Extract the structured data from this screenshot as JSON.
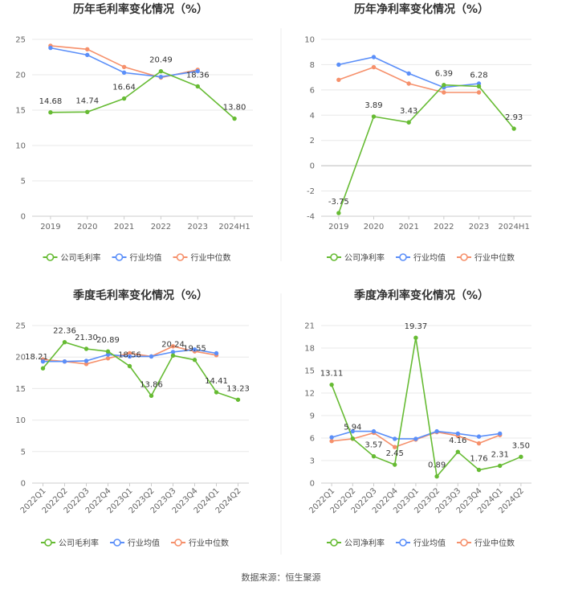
{
  "source": "数据来源：恒生聚源",
  "colors": {
    "company": "#66bb33",
    "industry_avg": "#5b8ff9",
    "industry_median": "#f6906b",
    "grid": "#e8e8e8",
    "axis": "#999999"
  },
  "chart_data": [
    {
      "type": "line",
      "title": "历年毛利率变化情况（%）",
      "categories": [
        "2019",
        "2020",
        "2021",
        "2022",
        "2023",
        "2024H1"
      ],
      "ylim": [
        0,
        25
      ],
      "yticks": [
        0,
        5,
        10,
        15,
        20,
        25
      ],
      "series": [
        {
          "name": "公司毛利率",
          "key": "company",
          "values": [
            14.68,
            14.74,
            16.64,
            20.49,
            18.36,
            13.8
          ],
          "labels": [
            "14.68",
            "14.74",
            "16.64",
            "20.49",
            "18.36",
            "13.80"
          ]
        },
        {
          "name": "行业均值",
          "key": "industry_avg",
          "values": [
            23.8,
            22.8,
            20.3,
            19.7,
            20.5,
            null
          ]
        },
        {
          "name": "行业中位数",
          "key": "industry_median",
          "values": [
            24.1,
            23.6,
            21.1,
            19.6,
            20.7,
            null
          ]
        }
      ]
    },
    {
      "type": "line",
      "title": "历年净利率变化情况（%）",
      "categories": [
        "2019",
        "2020",
        "2021",
        "2022",
        "2023",
        "2024H1"
      ],
      "ylim": [
        -4,
        10
      ],
      "yticks": [
        -4,
        -2,
        0,
        2,
        4,
        6,
        8,
        10
      ],
      "series": [
        {
          "name": "公司净利率",
          "key": "company",
          "values": [
            -3.75,
            3.89,
            3.43,
            6.39,
            6.28,
            2.93
          ],
          "labels": [
            "-3.75",
            "3.89",
            "3.43",
            "6.39",
            "6.28",
            "2.93"
          ]
        },
        {
          "name": "行业均值",
          "key": "industry_avg",
          "values": [
            8.0,
            8.6,
            7.3,
            6.2,
            6.5,
            null
          ]
        },
        {
          "name": "行业中位数",
          "key": "industry_median",
          "values": [
            6.8,
            7.8,
            6.5,
            5.8,
            5.8,
            null
          ]
        }
      ]
    },
    {
      "type": "line",
      "title": "季度毛利率变化情况（%）",
      "categories": [
        "2022Q1",
        "2022Q2",
        "2022Q3",
        "2022Q4",
        "2023Q1",
        "2023Q2",
        "2023Q3",
        "2023Q4",
        "2024Q1",
        "2024Q2"
      ],
      "ylim": [
        0,
        25
      ],
      "yticks": [
        0,
        5,
        10,
        15,
        20,
        25
      ],
      "series": [
        {
          "name": "公司毛利率",
          "key": "company",
          "values": [
            18.21,
            22.36,
            21.3,
            20.89,
            18.56,
            13.86,
            20.24,
            19.55,
            14.41,
            13.23
          ],
          "labels": [
            "18.21",
            "22.36",
            "21.30",
            "20.89",
            "18.56",
            "13.86",
            "20.24",
            "19.55",
            "14.41",
            "13.23"
          ]
        },
        {
          "name": "行业均值",
          "key": "industry_avg",
          "values": [
            19.3,
            19.3,
            19.4,
            20.4,
            20.1,
            20.1,
            20.8,
            21.2,
            20.6,
            null
          ]
        },
        {
          "name": "行业中位数",
          "key": "industry_median",
          "values": [
            19.6,
            19.3,
            18.9,
            19.8,
            20.6,
            20.1,
            21.7,
            20.9,
            20.3,
            null
          ]
        }
      ]
    },
    {
      "type": "line",
      "title": "季度净利率变化情况（%）",
      "categories": [
        "2022Q1",
        "2022Q2",
        "2022Q3",
        "2022Q4",
        "2023Q1",
        "2023Q2",
        "2023Q3",
        "2023Q4",
        "2024Q1",
        "2024Q2"
      ],
      "ylim": [
        0,
        21
      ],
      "yticks": [
        0,
        3,
        6,
        9,
        12,
        15,
        18,
        21
      ],
      "series": [
        {
          "name": "公司净利率",
          "key": "company",
          "values": [
            13.11,
            5.94,
            3.57,
            2.45,
            19.37,
            0.89,
            4.16,
            1.76,
            2.31,
            3.5
          ],
          "labels": [
            "13.11",
            "5.94",
            "3.57",
            "2.45",
            "19.37",
            "0.89",
            "4.16",
            "1.76",
            "2.31",
            "3.50"
          ]
        },
        {
          "name": "行业均值",
          "key": "industry_avg",
          "values": [
            6.1,
            6.9,
            6.9,
            5.9,
            5.9,
            6.9,
            6.6,
            6.2,
            6.6,
            null
          ]
        },
        {
          "name": "行业中位数",
          "key": "industry_median",
          "values": [
            5.6,
            5.9,
            6.7,
            4.8,
            5.8,
            6.8,
            6.3,
            5.3,
            6.4,
            null
          ]
        }
      ]
    }
  ]
}
